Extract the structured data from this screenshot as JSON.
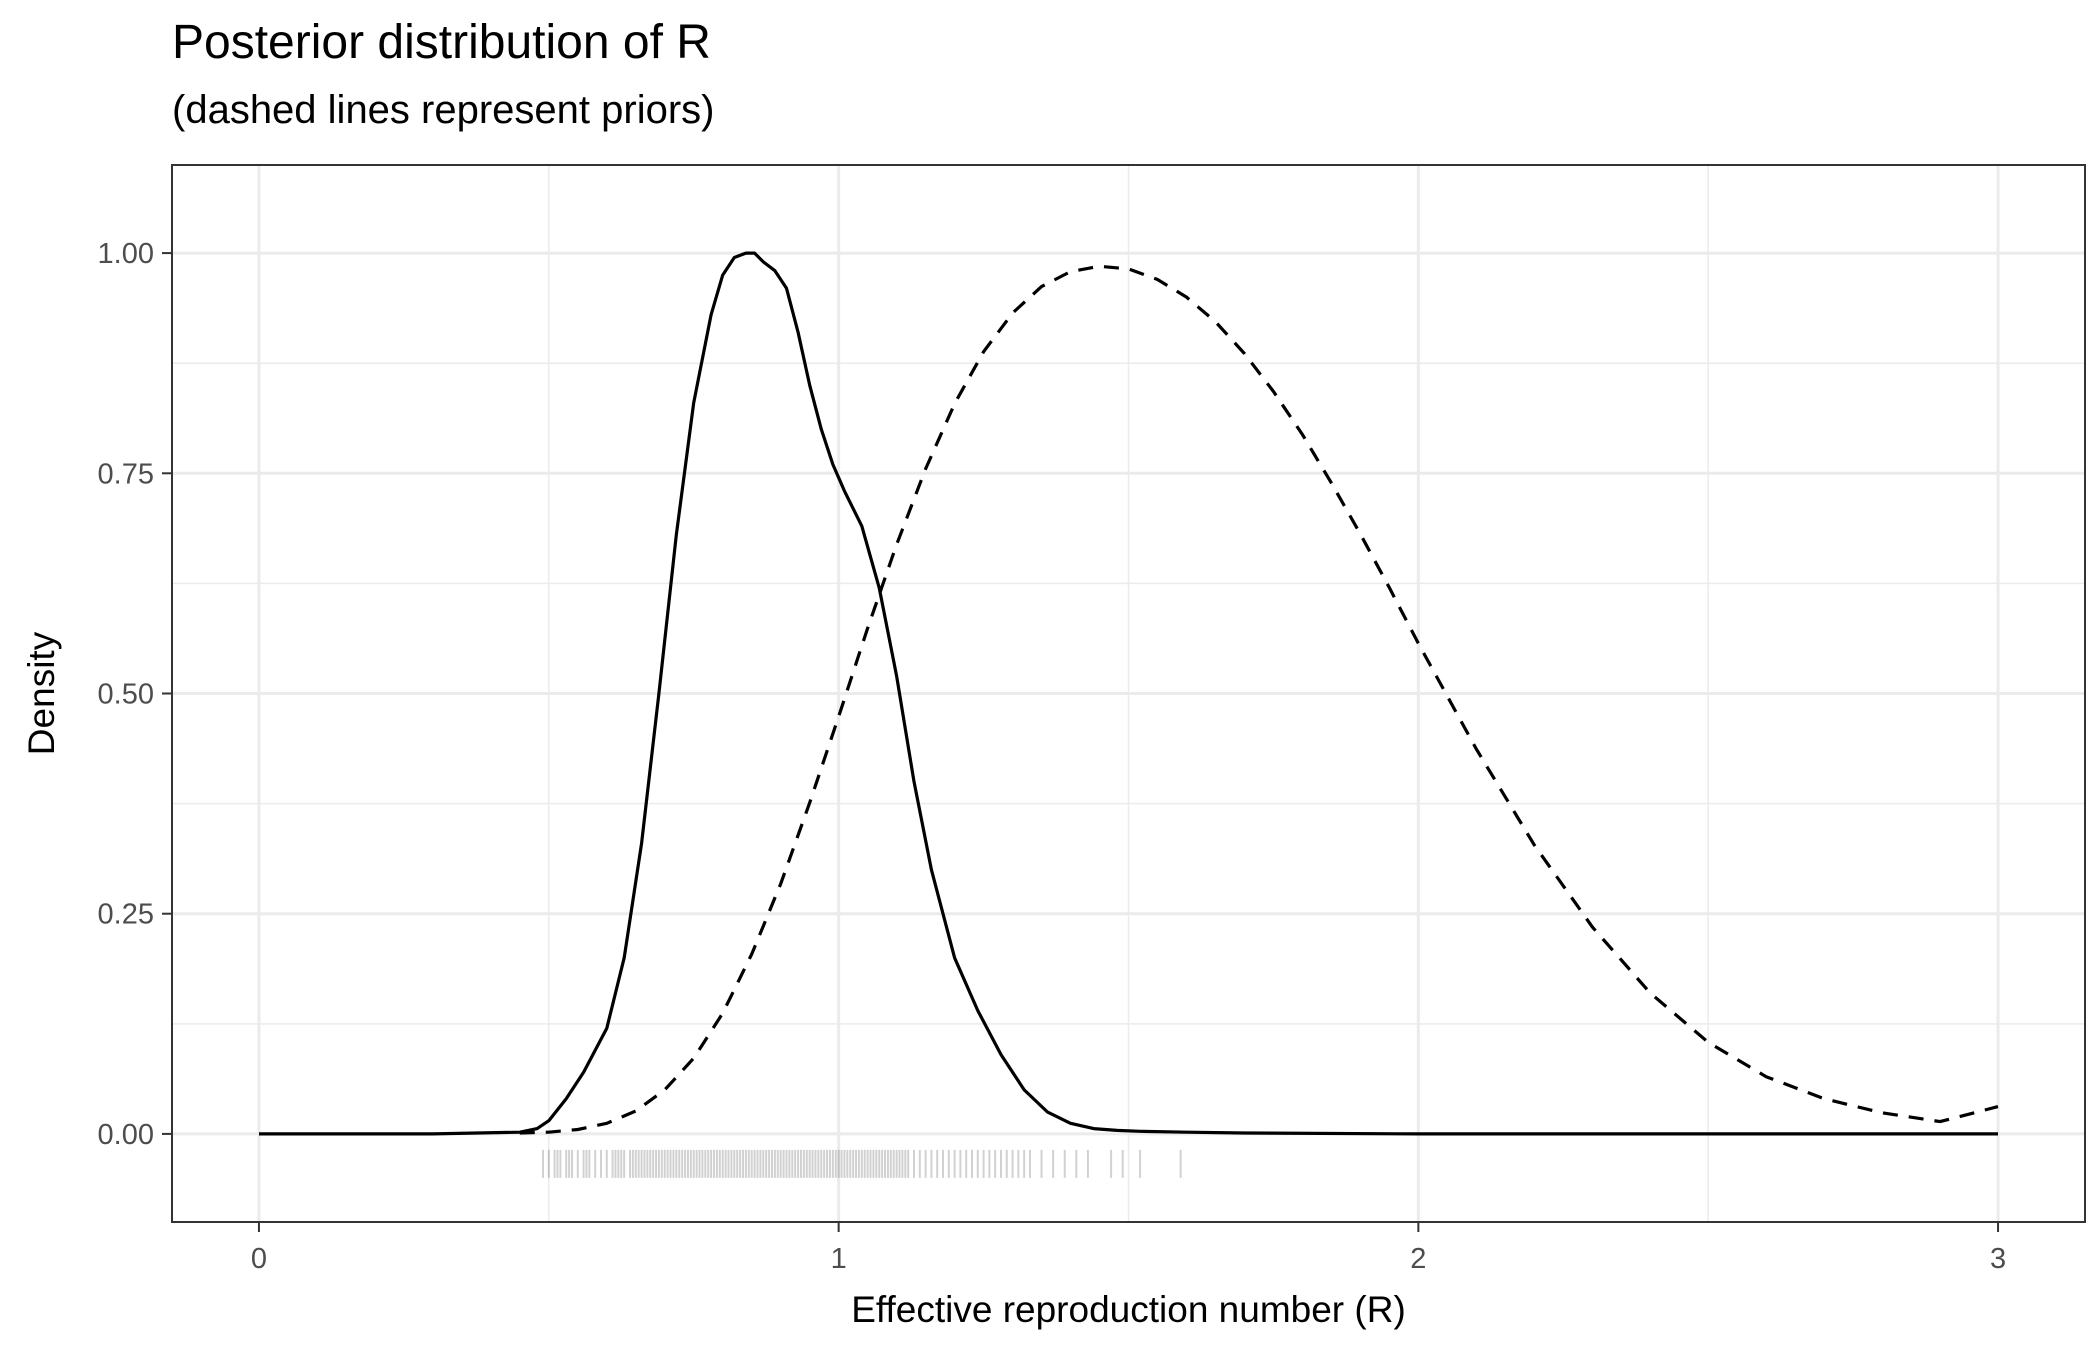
{
  "chart_data": {
    "type": "line",
    "title": "Posterior distribution of R",
    "subtitle": "(dashed lines represent priors)",
    "xlabel": "Effective reproduction number (R)",
    "ylabel": "Density",
    "xlim": [
      -0.15,
      3.15
    ],
    "ylim": [
      -0.1,
      1.1
    ],
    "x_ticks": [
      0,
      1,
      2,
      3
    ],
    "x_tick_labels": [
      "0",
      "1",
      "2",
      "3"
    ],
    "x_minor_ticks": [
      0.5,
      1.5,
      2.5
    ],
    "y_ticks": [
      0,
      0.25,
      0.5,
      0.75,
      1
    ],
    "y_tick_labels": [
      "0.00",
      "0.25",
      "0.50",
      "0.75",
      "1.00"
    ],
    "y_minor_ticks": [
      0.125,
      0.375,
      0.625,
      0.875
    ],
    "grid": true,
    "series": [
      {
        "style": "solid",
        "x": [
          0,
          0.3,
          0.45,
          0.48,
          0.5,
          0.53,
          0.56,
          0.6,
          0.63,
          0.66,
          0.69,
          0.72,
          0.75,
          0.78,
          0.8,
          0.82,
          0.84,
          0.855,
          0.87,
          0.89,
          0.91,
          0.93,
          0.95,
          0.97,
          0.99,
          1.01,
          1.04,
          1.07,
          1.1,
          1.13,
          1.16,
          1.2,
          1.24,
          1.28,
          1.32,
          1.36,
          1.4,
          1.44,
          1.48,
          1.52,
          1.6,
          1.7,
          2.0,
          2.5,
          3.0
        ],
        "y": [
          0,
          0,
          0.002,
          0.006,
          0.015,
          0.04,
          0.07,
          0.12,
          0.2,
          0.33,
          0.5,
          0.68,
          0.83,
          0.93,
          0.975,
          0.995,
          1.0,
          1.0,
          0.99,
          0.98,
          0.96,
          0.91,
          0.85,
          0.8,
          0.76,
          0.73,
          0.69,
          0.62,
          0.52,
          0.4,
          0.3,
          0.2,
          0.14,
          0.09,
          0.05,
          0.025,
          0.012,
          0.006,
          0.004,
          0.003,
          0.002,
          0.001,
          0,
          0,
          0
        ]
      },
      {
        "style": "dashed",
        "x": [
          0.45,
          0.5,
          0.55,
          0.6,
          0.65,
          0.7,
          0.75,
          0.8,
          0.85,
          0.9,
          0.95,
          1.0,
          1.05,
          1.1,
          1.15,
          1.2,
          1.25,
          1.3,
          1.35,
          1.4,
          1.45,
          1.5,
          1.55,
          1.6,
          1.65,
          1.7,
          1.75,
          1.8,
          1.85,
          1.9,
          1.95,
          2.0,
          2.1,
          2.2,
          2.3,
          2.4,
          2.5,
          2.6,
          2.7,
          2.8,
          2.9,
          3.0
        ],
        "y": [
          0.001,
          0.002,
          0.005,
          0.012,
          0.026,
          0.05,
          0.086,
          0.137,
          0.204,
          0.284,
          0.376,
          0.474,
          0.574,
          0.669,
          0.755,
          0.829,
          0.888,
          0.932,
          0.962,
          0.979,
          0.985,
          0.982,
          0.97,
          0.95,
          0.922,
          0.886,
          0.843,
          0.794,
          0.739,
          0.681,
          0.62,
          0.557,
          0.437,
          0.328,
          0.235,
          0.16,
          0.104,
          0.065,
          0.04,
          0.024,
          0.014,
          0.031
        ]
      }
    ],
    "rug": {
      "y": -0.034,
      "x": [
        0.49,
        0.5,
        0.51,
        0.515,
        0.52,
        0.53,
        0.535,
        0.54,
        0.55,
        0.56,
        0.565,
        0.57,
        0.58,
        0.59,
        0.6,
        0.61,
        0.615,
        0.62,
        0.625,
        0.63,
        0.64,
        0.645,
        0.65,
        0.655,
        0.66,
        0.665,
        0.67,
        0.675,
        0.68,
        0.685,
        0.69,
        0.695,
        0.7,
        0.705,
        0.71,
        0.715,
        0.72,
        0.725,
        0.73,
        0.735,
        0.74,
        0.745,
        0.75,
        0.755,
        0.76,
        0.765,
        0.77,
        0.775,
        0.78,
        0.785,
        0.79,
        0.795,
        0.8,
        0.805,
        0.81,
        0.815,
        0.82,
        0.825,
        0.83,
        0.835,
        0.84,
        0.845,
        0.85,
        0.855,
        0.86,
        0.865,
        0.87,
        0.875,
        0.88,
        0.885,
        0.89,
        0.895,
        0.9,
        0.905,
        0.91,
        0.915,
        0.92,
        0.925,
        0.93,
        0.935,
        0.94,
        0.945,
        0.95,
        0.955,
        0.96,
        0.965,
        0.97,
        0.975,
        0.98,
        0.985,
        0.99,
        0.995,
        1.0,
        1.005,
        1.01,
        1.015,
        1.02,
        1.025,
        1.03,
        1.035,
        1.04,
        1.045,
        1.05,
        1.055,
        1.06,
        1.065,
        1.07,
        1.075,
        1.08,
        1.085,
        1.09,
        1.095,
        1.1,
        1.105,
        1.11,
        1.115,
        1.12,
        1.13,
        1.14,
        1.15,
        1.16,
        1.17,
        1.18,
        1.19,
        1.2,
        1.21,
        1.22,
        1.23,
        1.24,
        1.25,
        1.26,
        1.27,
        1.28,
        1.29,
        1.3,
        1.31,
        1.32,
        1.33,
        1.35,
        1.37,
        1.39,
        1.41,
        1.43,
        1.47,
        1.49,
        1.52,
        1.59
      ]
    }
  }
}
